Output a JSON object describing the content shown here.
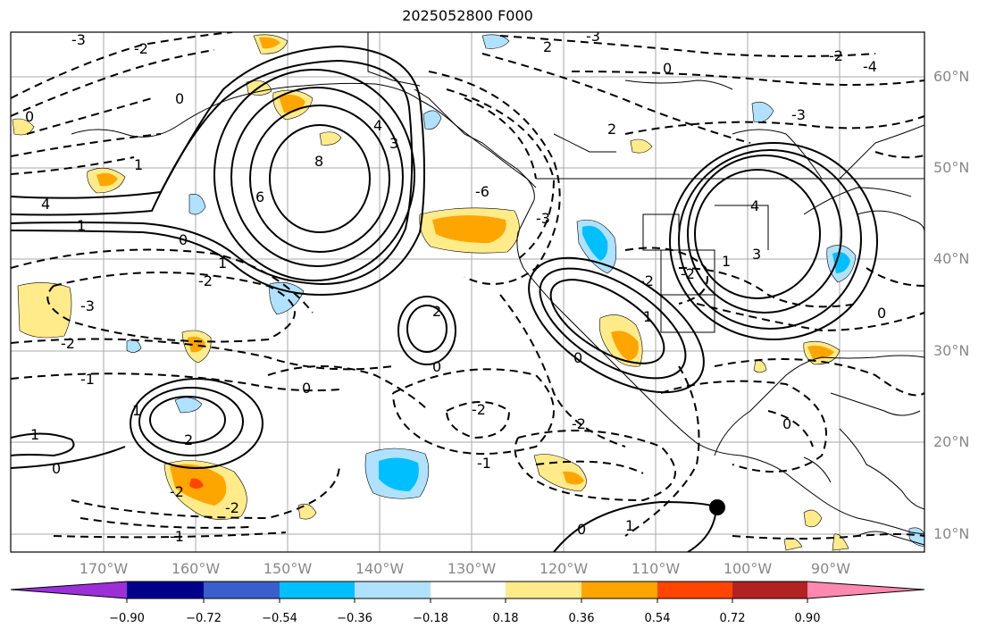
{
  "title": "2025052800 F000",
  "lat_labels": [
    "60°N",
    "50°N",
    "40°N",
    "30°N",
    "20°N",
    "10°N"
  ],
  "lon_labels": [
    "170°W",
    "160°W",
    "150°W",
    "140°W",
    "130°W",
    "120°W",
    "110°W",
    "100°W",
    "90°W"
  ],
  "colorbar": {
    "colors": [
      "#9b30d9",
      "#00008b",
      "#3a5fcd",
      "#00bfff",
      "#b0e2ff",
      "#ffffff",
      "#ffeb8a",
      "#ffa500",
      "#ff4500",
      "#b22222",
      "#ff88b0"
    ],
    "tick_labels": [
      "−0.90",
      "−0.72",
      "−0.54",
      "−0.36",
      "−0.18",
      "0.18",
      "0.36",
      "0.54",
      "0.72",
      "0.90"
    ]
  },
  "contour_labels": [
    "0",
    "2",
    "-1",
    "-2",
    "-3",
    "1",
    "4",
    "6",
    "8",
    "3",
    "-4",
    "-6"
  ],
  "marker": "station-dot"
}
